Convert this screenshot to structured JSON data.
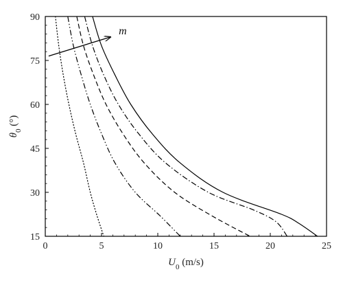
{
  "chart_data": {
    "type": "line",
    "xlabel": {
      "symbol": "U",
      "sub": "0",
      "unit": " (m/s)"
    },
    "ylabel": {
      "symbol": "θ",
      "sub": "0",
      "unit": " (°)"
    },
    "xlim": [
      0,
      25
    ],
    "ylim": [
      15,
      90
    ],
    "xticks": [
      "0",
      "5",
      "10",
      "15",
      "20",
      "25"
    ],
    "yticks": [
      "15",
      "30",
      "45",
      "60",
      "75",
      "90"
    ],
    "grid": false,
    "legend": "none",
    "annotations": [
      {
        "text": "m",
        "arrow_from": [
          0.3,
          76.5
        ],
        "arrow_to": [
          5.8,
          83
        ]
      }
    ],
    "series": [
      {
        "style": "dotted",
        "points": [
          [
            0.9,
            90
          ],
          [
            1.2,
            80
          ],
          [
            1.6,
            70
          ],
          [
            2.1,
            60
          ],
          [
            2.7,
            50
          ],
          [
            3.4,
            40
          ],
          [
            4.0,
            30
          ],
          [
            4.6,
            22
          ],
          [
            5.2,
            15
          ]
        ]
      },
      {
        "style": "dash-dot-dot",
        "points": [
          [
            2.0,
            90
          ],
          [
            2.5,
            80
          ],
          [
            3.2,
            70
          ],
          [
            4.0,
            60
          ],
          [
            5.0,
            50
          ],
          [
            6.2,
            40
          ],
          [
            8.0,
            30
          ],
          [
            10.2,
            22
          ],
          [
            12.0,
            15
          ]
        ]
      },
      {
        "style": "dashed",
        "points": [
          [
            2.8,
            90
          ],
          [
            3.4,
            80
          ],
          [
            4.3,
            70
          ],
          [
            5.4,
            60
          ],
          [
            6.9,
            50
          ],
          [
            8.8,
            40
          ],
          [
            11.5,
            30
          ],
          [
            14.8,
            22
          ],
          [
            18.2,
            15
          ]
        ]
      },
      {
        "style": "dash-dot",
        "points": [
          [
            3.5,
            90
          ],
          [
            4.2,
            80
          ],
          [
            5.2,
            70
          ],
          [
            6.5,
            60
          ],
          [
            8.3,
            50
          ],
          [
            10.7,
            40
          ],
          [
            14.5,
            30
          ],
          [
            18.5,
            24
          ],
          [
            20.5,
            20
          ],
          [
            21.5,
            15
          ]
        ]
      },
      {
        "style": "solid",
        "points": [
          [
            4.2,
            90
          ],
          [
            5.0,
            80
          ],
          [
            6.2,
            70
          ],
          [
            7.6,
            60
          ],
          [
            9.5,
            50
          ],
          [
            12.0,
            40
          ],
          [
            15.8,
            30
          ],
          [
            21.0,
            22.5
          ],
          [
            22.5,
            19.5
          ],
          [
            24.2,
            15
          ]
        ]
      }
    ]
  }
}
